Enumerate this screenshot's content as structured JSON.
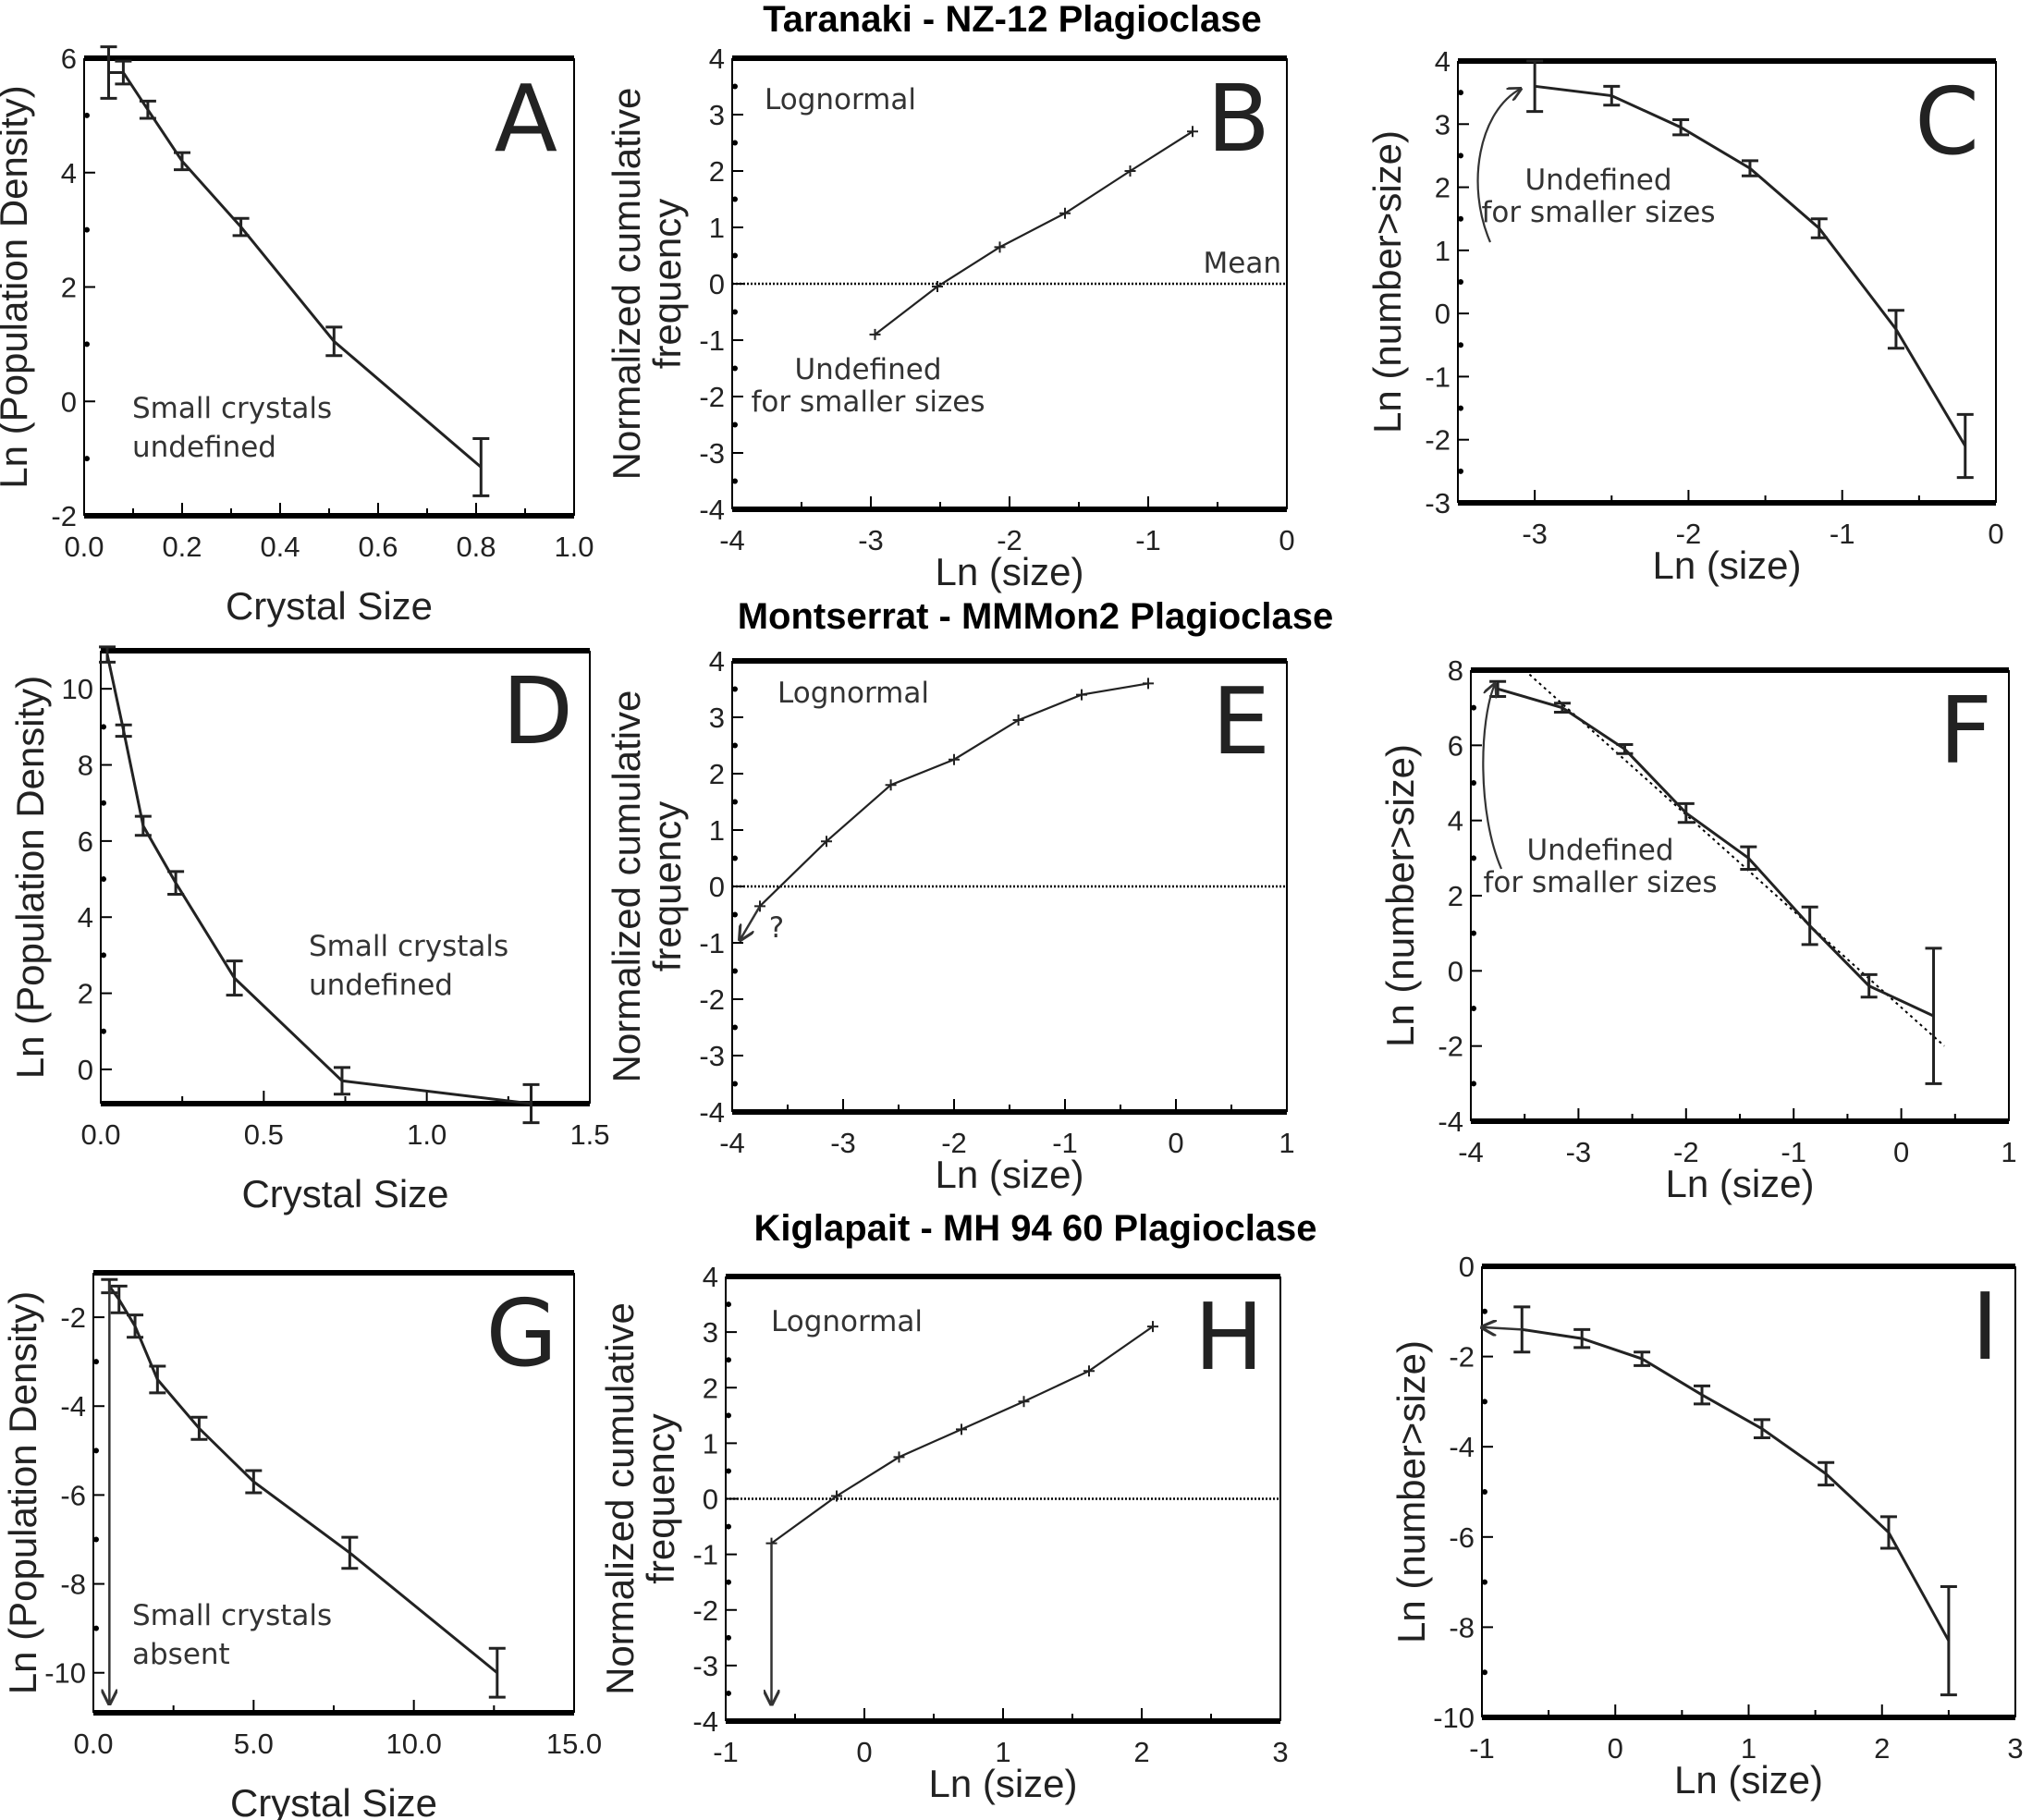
{
  "titles": [
    "Taranaki - NZ-12 Plagioclase",
    "Montserrat - MMMon2 Plagioclase",
    "Kiglapait - MH 94 60 Plagioclase"
  ],
  "chart_data": [
    {
      "panel": "A",
      "type": "line",
      "xlabel": "Crystal Size",
      "ylabel": "Ln (Population Density)",
      "xlim": [
        0,
        1
      ],
      "ylim": [
        -2,
        6
      ],
      "xticks": [
        0,
        0.2,
        0.4,
        0.6,
        0.8,
        1.0
      ],
      "xtick_labels": [
        "0.0",
        "0.2",
        "0.4",
        "0.6",
        "0.8",
        "1.0"
      ],
      "yticks": [
        -2,
        0,
        2,
        4,
        6
      ],
      "ytick_labels": [
        "-2",
        "0",
        "2",
        "4",
        "6"
      ],
      "x": [
        0.05,
        0.08,
        0.13,
        0.2,
        0.32,
        0.51,
        0.81
      ],
      "y": [
        5.75,
        5.75,
        5.1,
        4.2,
        3.05,
        1.05,
        -1.15
      ],
      "yerr": [
        0.45,
        0.2,
        0.15,
        0.15,
        0.15,
        0.25,
        0.5
      ],
      "annotations": [
        "Small crystals",
        "undefined"
      ]
    },
    {
      "panel": "B",
      "type": "line",
      "xlabel": "Ln (size)",
      "ylabel": "Normalized cumulative frequency",
      "xlim": [
        -4,
        0
      ],
      "ylim": [
        -4,
        4
      ],
      "xticks": [
        -4,
        -3,
        -2,
        -1,
        0
      ],
      "xtick_labels": [
        "-4",
        "-3",
        "-2",
        "-1",
        "0"
      ],
      "yticks": [
        -4,
        -3,
        -2,
        -1,
        0,
        1,
        2,
        3,
        4
      ],
      "ytick_labels": [
        "-4",
        "-3",
        "-2",
        "-1",
        "0",
        "1",
        "2",
        "3",
        "4"
      ],
      "x": [
        -2.97,
        -2.52,
        -2.07,
        -1.6,
        -1.13,
        -0.68
      ],
      "y": [
        -0.9,
        -0.05,
        0.65,
        1.25,
        2.0,
        2.7
      ],
      "reference_line": {
        "y": 0,
        "label": "Mean"
      },
      "annotations": [
        "Lognormal",
        "Undefined",
        "for smaller sizes"
      ]
    },
    {
      "panel": "C",
      "type": "line",
      "xlabel": "Ln (size)",
      "ylabel": "Ln (number>size)",
      "xlim": [
        -3.5,
        0
      ],
      "ylim": [
        -3,
        4
      ],
      "xticks": [
        -3,
        -2,
        -1,
        0
      ],
      "xtick_labels": [
        "-3",
        "-2",
        "-1",
        "0"
      ],
      "yticks": [
        -3,
        -2,
        -1,
        0,
        1,
        2,
        3,
        4
      ],
      "ytick_labels": [
        "-3",
        "-2",
        "-1",
        "0",
        "1",
        "2",
        "3",
        "4"
      ],
      "x": [
        -3.0,
        -2.5,
        -2.05,
        -1.6,
        -1.15,
        -0.65,
        -0.2
      ],
      "y": [
        3.6,
        3.45,
        2.95,
        2.3,
        1.35,
        -0.25,
        -2.1
      ],
      "yerr": [
        0.4,
        0.15,
        0.12,
        0.12,
        0.15,
        0.3,
        0.5
      ],
      "annotations": [
        "Undefined",
        "for smaller sizes"
      ]
    },
    {
      "panel": "D",
      "type": "line",
      "xlabel": "Crystal Size",
      "ylabel": "Ln (Population Density)",
      "xlim": [
        0,
        1.5
      ],
      "ylim": [
        -0.9,
        11
      ],
      "xticks": [
        0,
        0.5,
        1.0,
        1.5
      ],
      "xtick_labels": [
        "0.0",
        "0.5",
        "1.0",
        "1.5"
      ],
      "yticks": [
        0,
        2,
        4,
        6,
        8,
        10
      ],
      "ytick_labels": [
        "0",
        "2",
        "4",
        "6",
        "8",
        "10"
      ],
      "x": [
        0.02,
        0.07,
        0.13,
        0.23,
        0.41,
        0.74,
        1.32
      ],
      "y": [
        10.9,
        8.9,
        6.4,
        4.9,
        2.4,
        -0.3,
        -0.9
      ],
      "yerr": [
        0.2,
        0.15,
        0.25,
        0.3,
        0.45,
        0.35,
        0.5
      ],
      "annotations": [
        "Small crystals",
        "undefined"
      ]
    },
    {
      "panel": "E",
      "type": "line",
      "xlabel": "Ln (size)",
      "ylabel": "Normalized cumulative frequency",
      "xlim": [
        -4,
        1
      ],
      "ylim": [
        -4,
        4
      ],
      "xticks": [
        -4,
        -3,
        -2,
        -1,
        0,
        1
      ],
      "xtick_labels": [
        "-4",
        "-3",
        "-2",
        "-1",
        "0",
        "1"
      ],
      "yticks": [
        -4,
        -3,
        -2,
        -1,
        0,
        1,
        2,
        3,
        4
      ],
      "ytick_labels": [
        "-4",
        "-3",
        "-2",
        "-1",
        "0",
        "1",
        "2",
        "3",
        "4"
      ],
      "x": [
        -3.75,
        -3.15,
        -2.57,
        -2.0,
        -1.42,
        -0.85,
        -0.25
      ],
      "y": [
        -0.35,
        0.8,
        1.8,
        2.25,
        2.95,
        3.4,
        3.6
      ],
      "reference_line": {
        "y": 0
      },
      "arrow": {
        "from": [
          -3.75,
          -0.35
        ],
        "to": [
          -3.93,
          -0.95
        ]
      },
      "annotations": [
        "Lognormal",
        "?"
      ]
    },
    {
      "panel": "F",
      "type": "line",
      "xlabel": "Ln (size)",
      "ylabel": "Ln (number>size)",
      "xlim": [
        -4,
        1
      ],
      "ylim": [
        -4,
        8
      ],
      "xticks": [
        -4,
        -3,
        -2,
        -1,
        0,
        1
      ],
      "xtick_labels": [
        "-4",
        "-3",
        "-2",
        "-1",
        "0",
        "1"
      ],
      "yticks": [
        -4,
        -2,
        0,
        2,
        4,
        6,
        8
      ],
      "ytick_labels": [
        "-4",
        "-2",
        "0",
        "2",
        "4",
        "6",
        "8"
      ],
      "x": [
        -3.75,
        -3.15,
        -2.57,
        -2.0,
        -1.42,
        -0.85,
        -0.3,
        0.3
      ],
      "y": [
        7.5,
        7.0,
        5.9,
        4.2,
        3.0,
        1.2,
        -0.4,
        -1.2
      ],
      "yerr": [
        0.2,
        0.12,
        0.12,
        0.25,
        0.3,
        0.5,
        0.3,
        1.8
      ],
      "fit_line": {
        "x": [
          -3.5,
          0.4
        ],
        "y": [
          8.0,
          -2.0
        ]
      },
      "annotations": [
        "Undefined",
        "for smaller sizes"
      ]
    },
    {
      "panel": "G",
      "type": "line",
      "xlabel": "Crystal Size",
      "ylabel": "Ln (Population Density)",
      "xlim": [
        0,
        15
      ],
      "ylim": [
        -10.9,
        -1
      ],
      "xticks": [
        0,
        5,
        10,
        15
      ],
      "xtick_labels": [
        "0.0",
        "5.0",
        "10.0",
        "15.0"
      ],
      "yticks": [
        -10,
        -8,
        -6,
        -4,
        -2
      ],
      "ytick_labels": [
        "-10",
        "-8",
        "-6",
        "-4",
        "-2"
      ],
      "x": [
        0.5,
        0.8,
        1.3,
        2.0,
        3.3,
        5.0,
        8.0,
        12.6
      ],
      "y": [
        -1.3,
        -1.6,
        -2.2,
        -3.4,
        -4.5,
        -5.7,
        -7.3,
        -10.0
      ],
      "yerr": [
        0.15,
        0.3,
        0.25,
        0.3,
        0.25,
        0.25,
        0.35,
        0.55
      ],
      "arrow": {
        "from": [
          0.5,
          -1.2
        ],
        "to": [
          0.5,
          -10.7
        ]
      },
      "annotations": [
        "Small crystals",
        "absent"
      ]
    },
    {
      "panel": "H",
      "type": "line",
      "xlabel": "Ln (size)",
      "ylabel": "Normalized cumulative frequency",
      "xlim": [
        -1,
        3
      ],
      "ylim": [
        -4,
        4
      ],
      "xticks": [
        -1,
        0,
        1,
        2,
        3
      ],
      "xtick_labels": [
        "-1",
        "0",
        "1",
        "2",
        "3"
      ],
      "yticks": [
        -4,
        -3,
        -2,
        -1,
        0,
        1,
        2,
        3,
        4
      ],
      "ytick_labels": [
        "-4",
        "-3",
        "-2",
        "-1",
        "0",
        "1",
        "2",
        "3",
        "4"
      ],
      "x": [
        -0.67,
        -0.2,
        0.25,
        0.7,
        1.15,
        1.62,
        2.08
      ],
      "y": [
        -0.8,
        0.05,
        0.75,
        1.25,
        1.75,
        2.3,
        3.1
      ],
      "reference_line": {
        "y": 0
      },
      "arrow": {
        "from": [
          -0.67,
          -0.8
        ],
        "to": [
          -0.67,
          -3.7
        ]
      },
      "annotations": [
        "Lognormal"
      ]
    },
    {
      "panel": "I",
      "type": "line",
      "xlabel": "Ln (size)",
      "ylabel": "Ln (number>size)",
      "xlim": [
        -1,
        3
      ],
      "ylim": [
        -10,
        0
      ],
      "xticks": [
        -1,
        0,
        1,
        2,
        3
      ],
      "xtick_labels": [
        "-1",
        "0",
        "1",
        "2",
        "3"
      ],
      "yticks": [
        -10,
        -8,
        -6,
        -4,
        -2,
        0
      ],
      "ytick_labels": [
        "-10",
        "-8",
        "-6",
        "-4",
        "-2",
        "0"
      ],
      "x": [
        -0.7,
        -0.25,
        0.2,
        0.65,
        1.1,
        1.58,
        2.05,
        2.5
      ],
      "y": [
        -1.4,
        -1.6,
        -2.05,
        -2.85,
        -3.6,
        -4.6,
        -5.9,
        -8.3
      ],
      "yerr": [
        0.5,
        0.2,
        0.15,
        0.2,
        0.2,
        0.25,
        0.35,
        1.2
      ],
      "arrow": {
        "from": [
          -0.7,
          -1.4
        ],
        "to": [
          -1.0,
          -1.35
        ]
      },
      "annotations": []
    }
  ]
}
